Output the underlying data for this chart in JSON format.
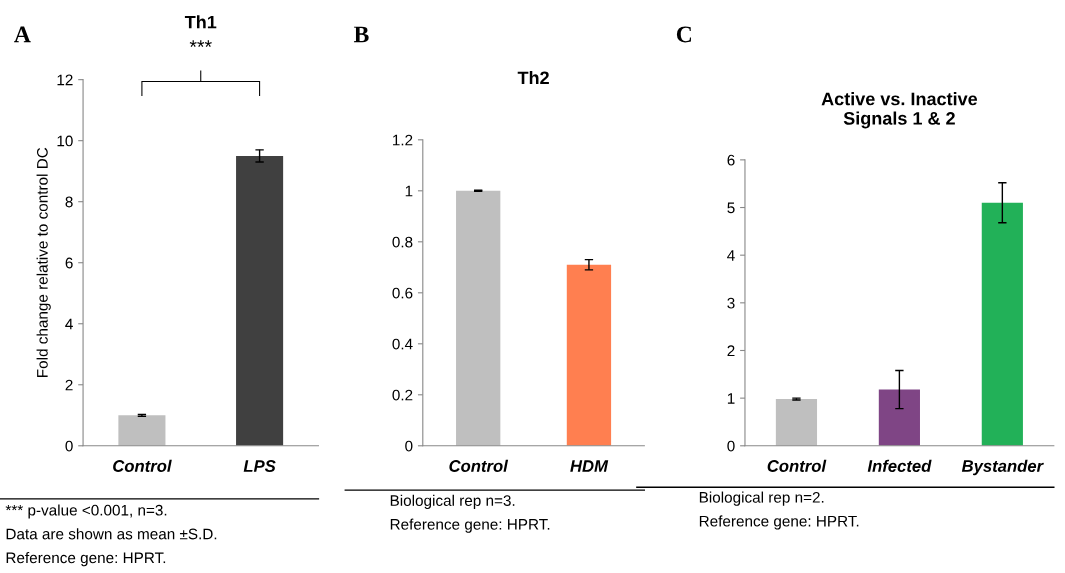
{
  "chart_data": [
    {
      "type": "bar",
      "title": "Th1",
      "ylabel": "Fold change relative to control DC",
      "categories": [
        "Control",
        "LPS"
      ],
      "values": [
        1.0,
        9.5
      ],
      "errors": [
        0.03,
        0.2
      ],
      "colors": [
        "#bfbfbf",
        "#404040"
      ],
      "ylim": [
        0,
        12
      ],
      "yticks": [
        0,
        2,
        4,
        6,
        8,
        10,
        12
      ],
      "grid": false,
      "legend": false,
      "annotations": [
        "A",
        "***",
        "*** p-value <0.001, n=3.",
        "Data are shown as mean ±S.D.",
        "Reference gene: HPRT."
      ]
    },
    {
      "type": "bar",
      "title": "Th2",
      "categories": [
        "Control",
        "HDM"
      ],
      "values": [
        1.0,
        0.71
      ],
      "errors": [
        0.002,
        0.02
      ],
      "colors": [
        "#bfbfbf",
        "#ff7f50"
      ],
      "ylim": [
        0,
        1.2
      ],
      "yticks": [
        0,
        0.2,
        0.4,
        0.6,
        0.8,
        1,
        1.2
      ],
      "grid": false,
      "legend": false,
      "annotations": [
        "B",
        "Biological rep n=3.",
        "Reference gene: HPRT."
      ]
    },
    {
      "type": "bar",
      "title": "Active vs. Inactive\nSignals 1 & 2",
      "categories": [
        "Control",
        "Infected",
        "Bystander"
      ],
      "values": [
        0.98,
        1.18,
        5.1
      ],
      "errors": [
        0.02,
        0.4,
        0.42
      ],
      "colors": [
        "#bfbfbf",
        "#7f4585",
        "#22b158"
      ],
      "ylim": [
        0,
        6
      ],
      "yticks": [
        0,
        1,
        2,
        3,
        4,
        5,
        6
      ],
      "grid": false,
      "legend": false,
      "annotations": [
        "C",
        "Biological rep n=2.",
        "Reference gene: HPRT."
      ]
    }
  ]
}
